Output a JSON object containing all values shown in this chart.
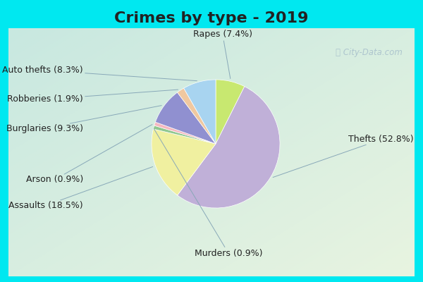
{
  "title": "Crimes by type - 2019",
  "order_labels": [
    "Rapes",
    "Thefts",
    "Assaults",
    "Murders",
    "Arson",
    "Burglaries",
    "Robberies",
    "Auto thefts"
  ],
  "order_values": [
    7.4,
    52.8,
    18.5,
    0.9,
    0.9,
    9.3,
    1.9,
    8.3
  ],
  "order_colors": [
    "#c8e870",
    "#c0b0d8",
    "#f0f0a0",
    "#90c890",
    "#f5b8c0",
    "#9090d0",
    "#f0c8a0",
    "#a8d4f0"
  ],
  "background_cyan": "#00e8f0",
  "background_inner_tl": "#c8e8e0",
  "background_inner_br": "#e0ecd8",
  "title_fontsize": 16,
  "label_fontsize": 9,
  "watermark": " City-Data.com",
  "watermark_color": "#a0b8c8",
  "text_positions": [
    [
      "Rapes (7.4%)",
      0.08,
      1.28,
      "center"
    ],
    [
      "Thefts (52.8%)",
      1.55,
      0.05,
      "left"
    ],
    [
      "Assaults (18.5%)",
      -1.55,
      -0.72,
      "right"
    ],
    [
      "Murders (0.9%)",
      0.15,
      -1.28,
      "center"
    ],
    [
      "Arson (0.9%)",
      -1.55,
      -0.42,
      "right"
    ],
    [
      "Burglaries (9.3%)",
      -1.55,
      0.18,
      "right"
    ],
    [
      "Robberies (1.9%)",
      -1.55,
      0.52,
      "right"
    ],
    [
      "Auto thefts (8.3%)",
      -1.55,
      0.86,
      "right"
    ]
  ]
}
